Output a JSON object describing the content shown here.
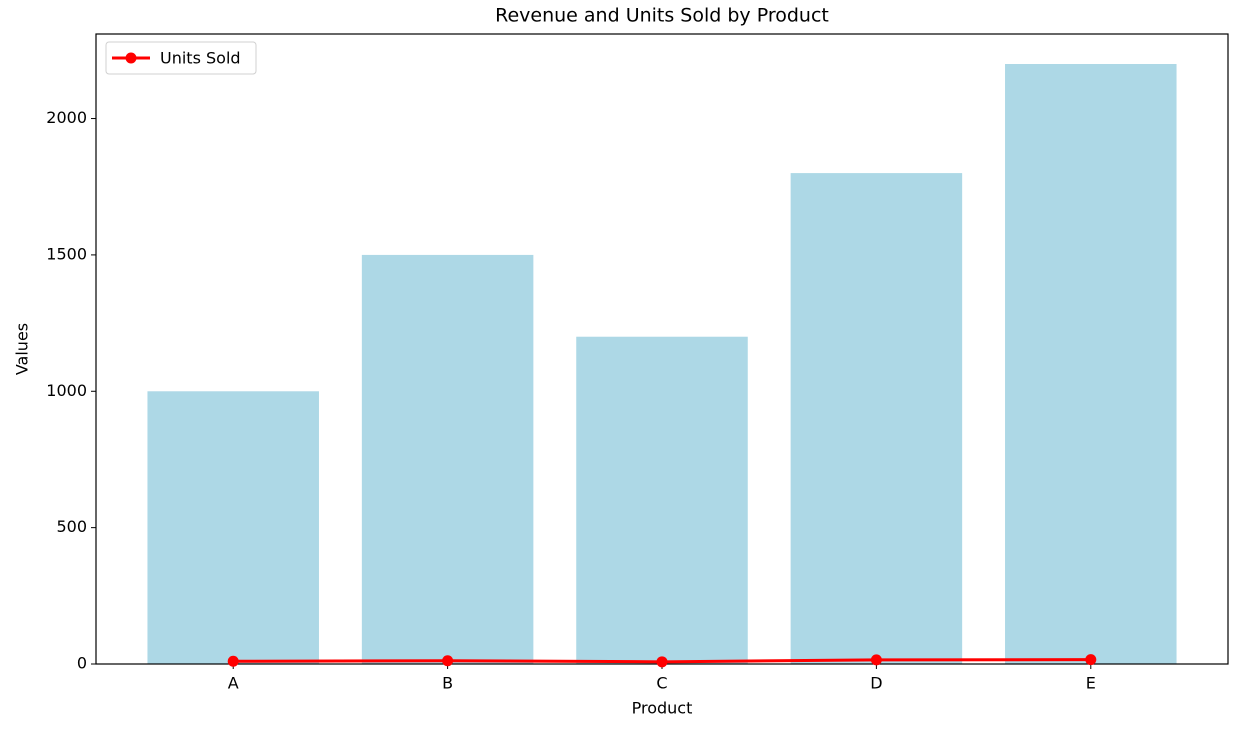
{
  "chart_data": {
    "type": "bar",
    "title": "Revenue and Units Sold by Product",
    "x_label": "Product",
    "y_label": "Values",
    "categories": [
      "A",
      "B",
      "C",
      "D",
      "E"
    ],
    "values": [
      1000,
      1500,
      1200,
      1800,
      2200
    ],
    "color": "#add8e6",
    "series": [
      {
        "name": "Units Sold",
        "type": "line",
        "color": "#ff0000",
        "values": [
          10,
          12,
          8,
          15,
          16
        ]
      }
    ],
    "ylim": [
      0,
      2310
    ],
    "yticks": [
      0,
      500,
      1000,
      1500,
      2000
    ],
    "grid": false,
    "legend": "upper-left"
  }
}
